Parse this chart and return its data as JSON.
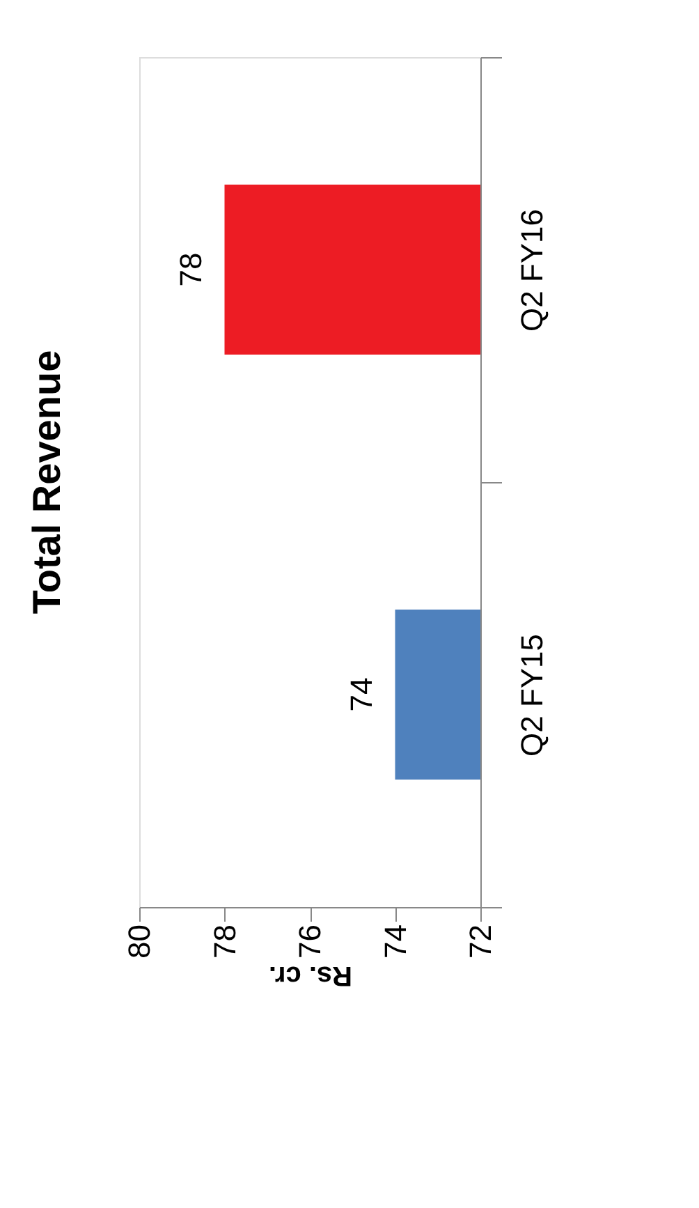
{
  "chart_data": {
    "type": "bar",
    "orientation": "horizontal",
    "title": "Total Revenue",
    "xlabel": "Rs. cr.",
    "categories": [
      "Q2 FY16",
      "Q2 FY15"
    ],
    "values": [
      78,
      74
    ],
    "colors": [
      "#ed1c24",
      "#4f81bd"
    ],
    "xlim": [
      80,
      72
    ],
    "xticks": [
      72,
      74,
      76,
      78,
      80
    ],
    "data_labels": true,
    "grid": false
  }
}
